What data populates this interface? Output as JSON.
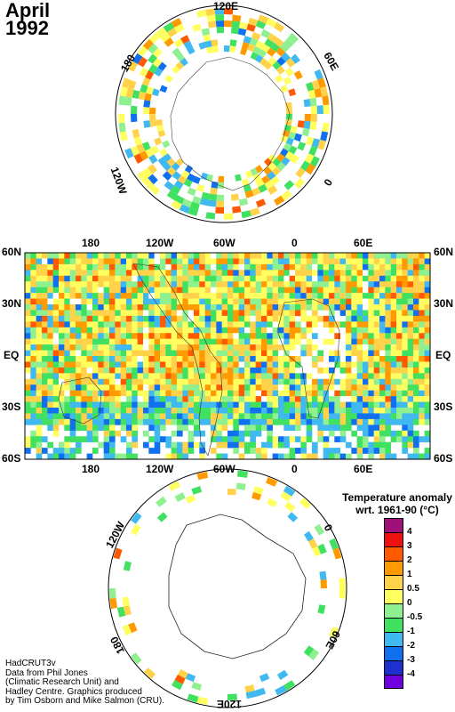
{
  "title": {
    "month": "April",
    "year": "1992"
  },
  "north_map": {
    "labels": [
      "120E",
      "60E",
      "0",
      "120W",
      "180"
    ]
  },
  "main_map": {
    "top_lon": [
      "180",
      "120W",
      "60W",
      "0",
      "60E"
    ],
    "bottom_lon": [
      "180",
      "120W",
      "60W",
      "0",
      "60E"
    ],
    "left_lat": [
      "60N",
      "30N",
      "EQ",
      "30S",
      "60S"
    ],
    "right_lat": [
      "60N",
      "30N",
      "EQ",
      "30S",
      "60S"
    ]
  },
  "south_map": {
    "labels": [
      "120W",
      "0",
      "60E",
      "120E",
      "180"
    ]
  },
  "legend": {
    "title_line1": "Temperature anomaly",
    "title_line2": "wrt. 1961-90  (°C)",
    "labels": [
      "4",
      "3",
      "2",
      "1",
      "0.5",
      "0",
      "-0.5",
      "-1",
      "-2",
      "-3",
      "-4"
    ],
    "colors": [
      "#a0107a",
      "#ee1111",
      "#ff5a00",
      "#ff9a00",
      "#ffd24a",
      "#ffff60",
      "#8ef08e",
      "#40e060",
      "#40b8f0",
      "#1070f0",
      "#2030d0",
      "#7000e0"
    ]
  },
  "credit": {
    "l1": "HadCRUT3v",
    "l2": "Data from Phil Jones",
    "l3": "(Climatic Research Unit) and",
    "l4": "Hadley Centre.  Graphics produced",
    "l5": "by Tim Osborn and Mike Salmon (CRU)."
  }
}
